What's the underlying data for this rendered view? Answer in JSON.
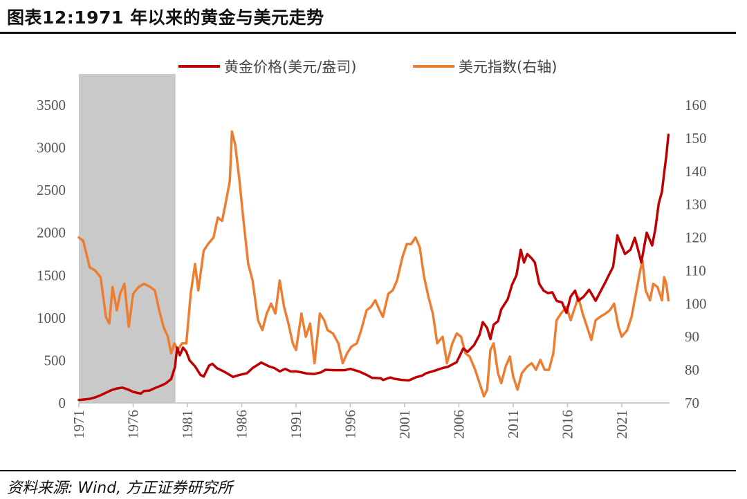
{
  "figure": {
    "title": "图表12:1971 年以来的黄金与美元走势",
    "source": "资料来源: Wind, 方正证券研究所"
  },
  "colors": {
    "gold": "#c00000",
    "usd": "#ed7d31",
    "shade": "#c9c9c9"
  },
  "chart_data": {
    "type": "line",
    "legend_position": "top",
    "grid": false,
    "shaded_period": [
      1971.0,
      1979.9
    ],
    "x_ticks": [
      "1971",
      "1976",
      "1981",
      "1986",
      "1991",
      "1996",
      "2001",
      "2006",
      "2011",
      "2016",
      "2021"
    ],
    "x_range": [
      1971,
      2025.4
    ],
    "y_left": {
      "range": [
        0,
        3500
      ],
      "ticks": [
        "0",
        "500",
        "1000",
        "1500",
        "2000",
        "2500",
        "3000",
        "3500"
      ]
    },
    "y_right": {
      "range": [
        70,
        160
      ],
      "ticks": [
        "70",
        "80",
        "90",
        "100",
        "110",
        "120",
        "130",
        "140",
        "150",
        "160"
      ]
    },
    "series": [
      {
        "name": "黄金价格(美元/盎司)",
        "axis": "left",
        "points": [
          [
            1971,
            35
          ],
          [
            1972,
            48
          ],
          [
            1972.5,
            65
          ],
          [
            1973,
            90
          ],
          [
            1973.5,
            120
          ],
          [
            1974,
            150
          ],
          [
            1974.5,
            170
          ],
          [
            1975,
            180
          ],
          [
            1975.5,
            160
          ],
          [
            1976,
            130
          ],
          [
            1976.7,
            110
          ],
          [
            1977,
            140
          ],
          [
            1977.5,
            145
          ],
          [
            1978,
            175
          ],
          [
            1978.6,
            205
          ],
          [
            1979,
            230
          ],
          [
            1979.5,
            280
          ],
          [
            1979.85,
            420
          ],
          [
            1980.05,
            650
          ],
          [
            1980.3,
            560
          ],
          [
            1980.6,
            650
          ],
          [
            1980.9,
            600
          ],
          [
            1981.2,
            500
          ],
          [
            1981.7,
            430
          ],
          [
            1982.2,
            330
          ],
          [
            1982.5,
            310
          ],
          [
            1983,
            440
          ],
          [
            1983.3,
            460
          ],
          [
            1983.7,
            410
          ],
          [
            1984.5,
            360
          ],
          [
            1985.2,
            305
          ],
          [
            1985.8,
            330
          ],
          [
            1986.5,
            350
          ],
          [
            1987,
            410
          ],
          [
            1987.8,
            475
          ],
          [
            1988.5,
            430
          ],
          [
            1989,
            410
          ],
          [
            1989.5,
            370
          ],
          [
            1990,
            400
          ],
          [
            1990.5,
            370
          ],
          [
            1991,
            370
          ],
          [
            1991.5,
            360
          ],
          [
            1992,
            345
          ],
          [
            1992.7,
            340
          ],
          [
            1993.3,
            360
          ],
          [
            1993.7,
            390
          ],
          [
            1994.5,
            385
          ],
          [
            1995.5,
            385
          ],
          [
            1996,
            400
          ],
          [
            1996.8,
            370
          ],
          [
            1997.5,
            330
          ],
          [
            1998,
            295
          ],
          [
            1998.8,
            290
          ],
          [
            1999,
            270
          ],
          [
            1999.7,
            300
          ],
          [
            2000,
            285
          ],
          [
            2000.8,
            270
          ],
          [
            2001.4,
            265
          ],
          [
            2002,
            300
          ],
          [
            2002.6,
            320
          ],
          [
            2003,
            350
          ],
          [
            2003.8,
            380
          ],
          [
            2004.5,
            410
          ],
          [
            2005,
            425
          ],
          [
            2005.8,
            480
          ],
          [
            2006.4,
            640
          ],
          [
            2006.8,
            600
          ],
          [
            2007.4,
            680
          ],
          [
            2007.9,
            800
          ],
          [
            2008.2,
            950
          ],
          [
            2008.6,
            880
          ],
          [
            2008.9,
            750
          ],
          [
            2009.2,
            920
          ],
          [
            2009.6,
            960
          ],
          [
            2009.9,
            1100
          ],
          [
            2010.5,
            1220
          ],
          [
            2010.9,
            1390
          ],
          [
            2011.3,
            1500
          ],
          [
            2011.7,
            1800
          ],
          [
            2012.0,
            1650
          ],
          [
            2012.3,
            1750
          ],
          [
            2012.7,
            1700
          ],
          [
            2013.0,
            1650
          ],
          [
            2013.4,
            1400
          ],
          [
            2013.8,
            1320
          ],
          [
            2014.2,
            1290
          ],
          [
            2014.6,
            1300
          ],
          [
            2015.0,
            1200
          ],
          [
            2015.5,
            1180
          ],
          [
            2015.9,
            1060
          ],
          [
            2016.3,
            1250
          ],
          [
            2016.7,
            1320
          ],
          [
            2017.0,
            1200
          ],
          [
            2017.5,
            1250
          ],
          [
            2018.0,
            1330
          ],
          [
            2018.6,
            1200
          ],
          [
            2019.0,
            1300
          ],
          [
            2019.5,
            1420
          ],
          [
            2019.8,
            1500
          ],
          [
            2020.2,
            1600
          ],
          [
            2020.6,
            1970
          ],
          [
            2020.9,
            1870
          ],
          [
            2021.3,
            1750
          ],
          [
            2021.8,
            1800
          ],
          [
            2022.2,
            1940
          ],
          [
            2022.5,
            1800
          ],
          [
            2022.8,
            1650
          ],
          [
            2023.3,
            2000
          ],
          [
            2023.8,
            1850
          ],
          [
            2024.1,
            2050
          ],
          [
            2024.4,
            2340
          ],
          [
            2024.7,
            2480
          ],
          [
            2024.9,
            2700
          ],
          [
            2025.1,
            2900
          ],
          [
            2025.3,
            3150
          ]
        ]
      },
      {
        "name": "美元指数(右轴)",
        "axis": "right",
        "points": [
          [
            1971,
            120
          ],
          [
            1971.4,
            119
          ],
          [
            1971.7,
            115
          ],
          [
            1972,
            111
          ],
          [
            1972.5,
            110
          ],
          [
            1973,
            108
          ],
          [
            1973.5,
            96
          ],
          [
            1973.8,
            94
          ],
          [
            1974.1,
            105
          ],
          [
            1974.5,
            98
          ],
          [
            1974.8,
            103
          ],
          [
            1975.2,
            106
          ],
          [
            1975.6,
            93
          ],
          [
            1976,
            103
          ],
          [
            1976.5,
            105
          ],
          [
            1977,
            106
          ],
          [
            1977.6,
            105
          ],
          [
            1978,
            104
          ],
          [
            1978.4,
            98
          ],
          [
            1978.8,
            93
          ],
          [
            1979.2,
            90
          ],
          [
            1979.5,
            85
          ],
          [
            1979.8,
            88
          ],
          [
            1980.1,
            86
          ],
          [
            1980.5,
            88
          ],
          [
            1980.9,
            88
          ],
          [
            1981.3,
            103
          ],
          [
            1981.7,
            112
          ],
          [
            1982,
            104
          ],
          [
            1982.5,
            116
          ],
          [
            1982.9,
            118
          ],
          [
            1983.4,
            120
          ],
          [
            1983.8,
            126
          ],
          [
            1984.2,
            125
          ],
          [
            1984.5,
            130
          ],
          [
            1984.9,
            137
          ],
          [
            1985.1,
            152
          ],
          [
            1985.4,
            148
          ],
          [
            1985.8,
            137
          ],
          [
            1986.2,
            124
          ],
          [
            1986.6,
            112
          ],
          [
            1987.0,
            107
          ],
          [
            1987.5,
            95
          ],
          [
            1987.9,
            92
          ],
          [
            1988.3,
            97
          ],
          [
            1988.7,
            100
          ],
          [
            1989.1,
            97
          ],
          [
            1989.5,
            107
          ],
          [
            1989.9,
            99
          ],
          [
            1990.3,
            94
          ],
          [
            1990.7,
            88
          ],
          [
            1991.0,
            86
          ],
          [
            1991.5,
            97
          ],
          [
            1991.9,
            90
          ],
          [
            1992.3,
            94
          ],
          [
            1992.7,
            82
          ],
          [
            1993.2,
            97
          ],
          [
            1993.6,
            95
          ],
          [
            1993.9,
            92
          ],
          [
            1994.4,
            91
          ],
          [
            1994.9,
            88
          ],
          [
            1995.3,
            82
          ],
          [
            1995.7,
            85
          ],
          [
            1996.1,
            87
          ],
          [
            1996.6,
            88
          ],
          [
            1997.0,
            92
          ],
          [
            1997.5,
            98
          ],
          [
            1997.9,
            99
          ],
          [
            1998.3,
            101
          ],
          [
            1998.7,
            98
          ],
          [
            1999.0,
            96
          ],
          [
            1999.5,
            103
          ],
          [
            1999.9,
            104
          ],
          [
            2000.3,
            107
          ],
          [
            2000.8,
            114
          ],
          [
            2001.2,
            118
          ],
          [
            2001.6,
            118
          ],
          [
            2002.0,
            120
          ],
          [
            2002.4,
            117
          ],
          [
            2002.8,
            108
          ],
          [
            2003.2,
            102
          ],
          [
            2003.6,
            97
          ],
          [
            2004.0,
            88
          ],
          [
            2004.5,
            90
          ],
          [
            2004.9,
            82
          ],
          [
            2005.4,
            88
          ],
          [
            2005.8,
            91
          ],
          [
            2006.2,
            90
          ],
          [
            2006.6,
            85
          ],
          [
            2007.0,
            84
          ],
          [
            2007.5,
            80
          ],
          [
            2007.9,
            76
          ],
          [
            2008.3,
            72
          ],
          [
            2008.6,
            74
          ],
          [
            2008.9,
            86
          ],
          [
            2009.2,
            88
          ],
          [
            2009.6,
            79
          ],
          [
            2009.9,
            76
          ],
          [
            2010.3,
            81
          ],
          [
            2010.7,
            84
          ],
          [
            2011.0,
            78
          ],
          [
            2011.4,
            74
          ],
          [
            2011.8,
            79
          ],
          [
            2012.3,
            81
          ],
          [
            2012.7,
            82
          ],
          [
            2013.1,
            80
          ],
          [
            2013.5,
            83
          ],
          [
            2013.9,
            80
          ],
          [
            2014.3,
            80
          ],
          [
            2014.7,
            85
          ],
          [
            2015.0,
            95
          ],
          [
            2015.4,
            97
          ],
          [
            2015.9,
            99
          ],
          [
            2016.3,
            95
          ],
          [
            2016.8,
            100
          ],
          [
            2017.0,
            102
          ],
          [
            2017.4,
            97
          ],
          [
            2017.8,
            93
          ],
          [
            2018.2,
            89
          ],
          [
            2018.6,
            95
          ],
          [
            2019.0,
            96
          ],
          [
            2019.5,
            97
          ],
          [
            2019.9,
            98
          ],
          [
            2020.3,
            100
          ],
          [
            2020.7,
            93
          ],
          [
            2021.0,
            90
          ],
          [
            2021.5,
            92
          ],
          [
            2021.9,
            96
          ],
          [
            2022.3,
            103
          ],
          [
            2022.7,
            110
          ],
          [
            2022.9,
            113
          ],
          [
            2023.2,
            104
          ],
          [
            2023.6,
            101
          ],
          [
            2023.9,
            106
          ],
          [
            2024.3,
            105
          ],
          [
            2024.7,
            101
          ],
          [
            2024.9,
            108
          ],
          [
            2025.1,
            106
          ],
          [
            2025.3,
            101
          ]
        ]
      }
    ]
  }
}
